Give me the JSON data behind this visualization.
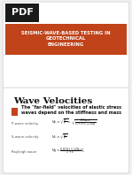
{
  "bg_color": "#f0f0f0",
  "top_panel_bg": "#ffffff",
  "bottom_panel_bg": "#ffffff",
  "pdf_label": "PDF",
  "pdf_bg": "#1a1a1a",
  "pdf_text_color": "#ffffff",
  "header_bg": "#c0431a",
  "header_text": "SEISMIC-WAVE-BASED TESTING IN\nGEOTECHNICAL\nENGINEERING",
  "header_text_color": "#ffffff",
  "slide_title": "Wave Velocities",
  "bullet_color": "#c0431a",
  "bullet_text": "The \"far-field\" velocities of elastic stress\nwaves depend on the stiffness and mass",
  "label1": "P-wave velocity",
  "formula1a": "$V_p = \\sqrt{\\frac{M}{\\rho}} = \\sqrt{\\frac{\\frac{E(1-\\nu)}{(1+\\nu)(1-2\\nu)}}{\\rho}} = \\sqrt{\\frac{E}{\\rho} \\cdot \\frac{1-\\nu}{(1+\\nu)(1-2\\nu)}}$",
  "label2": "S-wave velocity",
  "formula2": "$V_s = \\sqrt{\\frac{G}{\\rho}}$",
  "label3": "Rayleigh wave",
  "formula3": "$V_R = \\frac{0.874 + 1.125\\nu}{1+\\nu} V_s$"
}
